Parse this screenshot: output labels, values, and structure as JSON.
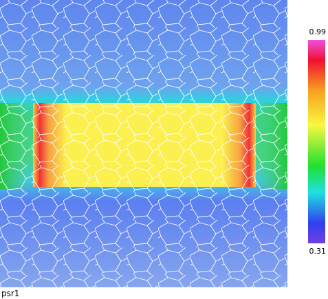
{
  "field": {
    "label": "psr1"
  },
  "colorbar": {
    "max": "0.99",
    "min": "0.31"
  }
}
